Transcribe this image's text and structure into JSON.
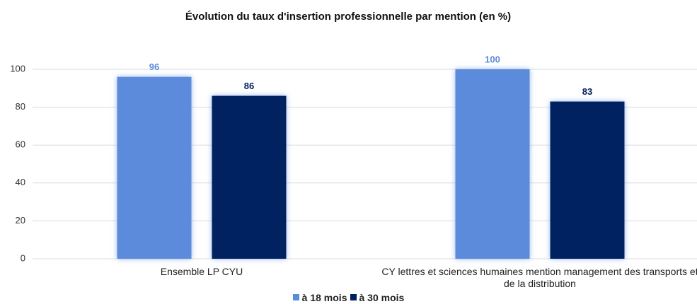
{
  "chart_data": {
    "type": "bar",
    "title": "Évolution du taux d'insertion professionnelle par mention (en %)",
    "categories": [
      "Ensemble LP CYU",
      "CY lettres et sciences humaines mention management des transports et de la distribution"
    ],
    "series": [
      {
        "name": "à 18 mois",
        "color": "#5b8bdb",
        "values": [
          96,
          100
        ]
      },
      {
        "name": "à 30 mois",
        "color": "#002060",
        "values": [
          86,
          83
        ]
      }
    ],
    "ylim": [
      0,
      100
    ],
    "yticks": [
      0,
      20,
      40,
      60,
      80,
      100
    ],
    "grid": true,
    "legend": "bottom"
  }
}
